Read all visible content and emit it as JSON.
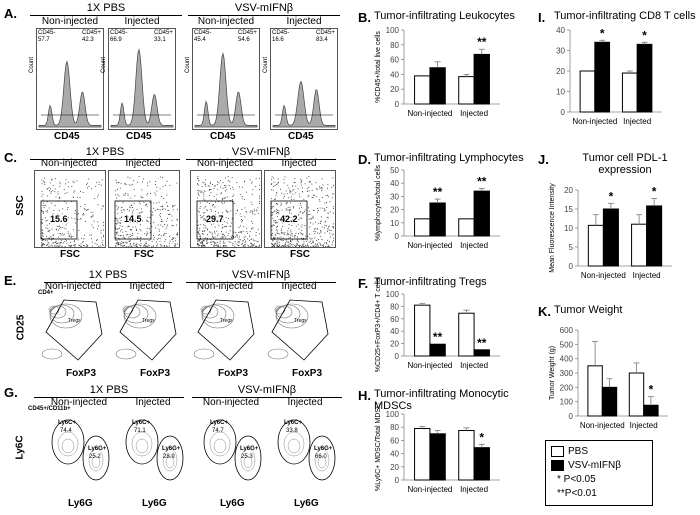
{
  "panels": {
    "A": {
      "letter": "A.",
      "groups": [
        "1X PBS",
        "VSV-mIFNβ"
      ],
      "subs": [
        "Non-injected",
        "Injected",
        "Non-injected",
        "Injected"
      ],
      "xaxis": "CD45",
      "yaxis": "Count",
      "gates": [
        [
          "CD45-",
          "57.7",
          "CD45+",
          "42.3"
        ],
        [
          "CD45-",
          "66.9",
          "CD45+",
          "33.1"
        ],
        [
          "CD45-",
          "45.4",
          "CD45+",
          "54.6"
        ],
        [
          "CD45-",
          "16.6",
          "CD45+",
          "83.4"
        ]
      ]
    },
    "C": {
      "letter": "C.",
      "groups": [
        "1X PBS",
        "VSV-mIFNβ"
      ],
      "subs": [
        "Non-injected",
        "Injected",
        "Non-injected",
        "Injected"
      ],
      "xaxis": "FSC",
      "yaxis": "SSC",
      "gates": [
        "15.6",
        "14.5",
        "29.7",
        "42.2"
      ]
    },
    "E": {
      "letter": "E.",
      "groups": [
        "1X PBS",
        "VSV-mIFNβ"
      ],
      "subs": [
        "Non-injected",
        "Injected",
        "Non-injected",
        "Injected"
      ],
      "xaxis": "FoxP3",
      "yaxis": "CD25",
      "gate_label": "CD4+",
      "tiny": "Tregs"
    },
    "G": {
      "letter": "G.",
      "groups": [
        "1X PBS",
        "VSV-mIFNβ"
      ],
      "subs": [
        "Non-injected",
        "Injected",
        "Non-injected",
        "Injected"
      ],
      "xaxis": "Ly6G",
      "yaxis": "Ly6C",
      "gate_label": "CD45+/CD11b+",
      "gates": [
        [
          "Ly6C+",
          "74.4",
          "Ly6G+",
          "25.2"
        ],
        [
          "Ly6C+",
          "71.1",
          "Ly6G+",
          "28.9"
        ],
        [
          "Ly6C+",
          "74.7",
          "Ly6G+",
          "25.3"
        ],
        [
          "Ly6C+",
          "33.8",
          "Ly6G+",
          "66.0"
        ]
      ]
    }
  },
  "chart_data": [
    {
      "id": "B",
      "letter": "B.",
      "type": "bar",
      "title": "Tumor-infiltrating Leukocytes",
      "ylabel": "%CD45+/total live cells",
      "ylim": [
        0,
        100
      ],
      "yticks": [
        0,
        20,
        40,
        60,
        80,
        100
      ],
      "categories": [
        "Non-injected",
        "Injected"
      ],
      "series": [
        {
          "name": "PBS",
          "values": [
            38,
            37
          ],
          "err": [
            0,
            3
          ]
        },
        {
          "name": "VSV-mIFNβ",
          "values": [
            49,
            67
          ],
          "err": [
            8,
            7
          ]
        }
      ],
      "sig": [
        "",
        "**"
      ]
    },
    {
      "id": "D",
      "letter": "D.",
      "type": "bar",
      "title": "Tumor-infiltrating Lymphocytes",
      "ylabel": "%lymphocytes/total cells",
      "ylim": [
        0,
        50
      ],
      "yticks": [
        0,
        10,
        20,
        30,
        40,
        50
      ],
      "categories": [
        "Non-injected",
        "Injected"
      ],
      "series": [
        {
          "name": "PBS",
          "values": [
            13,
            13
          ],
          "err": [
            0,
            0
          ]
        },
        {
          "name": "VSV-mIFNβ",
          "values": [
            25,
            34
          ],
          "err": [
            3,
            2
          ]
        }
      ],
      "sig": [
        "**",
        "**"
      ]
    },
    {
      "id": "F",
      "letter": "F.",
      "type": "bar",
      "title": "Tumor-infiltrating Tregs",
      "ylabel": "%CD25+FoxP3+/CD4+ T cells",
      "ylim": [
        0,
        100
      ],
      "yticks": [
        0,
        20,
        40,
        60,
        80,
        100
      ],
      "categories": [
        "Non-injected",
        "Injected"
      ],
      "series": [
        {
          "name": "PBS",
          "values": [
            82,
            69
          ],
          "err": [
            3,
            5
          ]
        },
        {
          "name": "VSV-mIFNβ",
          "values": [
            19,
            10
          ],
          "err": [
            0,
            0
          ]
        }
      ],
      "sig": [
        "**",
        "**"
      ]
    },
    {
      "id": "H",
      "letter": "H.",
      "type": "bar",
      "title": "Tumor-infiltrating Monocytic MDSCs",
      "ylabel": "%Ly6C+ MDSC/Total MDSC",
      "ylim": [
        0,
        100
      ],
      "yticks": [
        0,
        20,
        40,
        60,
        80,
        100
      ],
      "categories": [
        "Non-injected",
        "Injected"
      ],
      "series": [
        {
          "name": "PBS",
          "values": [
            78,
            75
          ],
          "err": [
            3,
            4
          ]
        },
        {
          "name": "VSV-mIFNβ",
          "values": [
            70,
            49
          ],
          "err": [
            5,
            5
          ]
        }
      ],
      "sig": [
        "",
        "*"
      ]
    },
    {
      "id": "I",
      "letter": "I.",
      "type": "bar",
      "title": "Tumor-infiltrating CD8 T cells",
      "ylabel": "",
      "ylim": [
        0,
        40
      ],
      "yticks": [
        0,
        10,
        20,
        30,
        40
      ],
      "categories": [
        "Non-injected",
        "Injected"
      ],
      "series": [
        {
          "name": "PBS",
          "values": [
            20,
            19
          ],
          "err": [
            0,
            1
          ]
        },
        {
          "name": "VSV-mIFNβ",
          "values": [
            34,
            33
          ],
          "err": [
            1,
            1
          ]
        }
      ],
      "sig": [
        "*",
        "*"
      ]
    },
    {
      "id": "J",
      "letter": "J.",
      "type": "bar",
      "title": "Tumor cell PDL-1 expression",
      "ylabel": "Mean Fluorescence Intensity",
      "ylim": [
        0,
        20
      ],
      "yticks": [
        0,
        5,
        10,
        15,
        20
      ],
      "categories": [
        "Non-injected",
        "Injected"
      ],
      "series": [
        {
          "name": "PBS",
          "values": [
            10.7,
            11
          ],
          "err": [
            2.8,
            2.5
          ]
        },
        {
          "name": "VSV-mIFNβ",
          "values": [
            15,
            15.8
          ],
          "err": [
            1.5,
            2
          ]
        }
      ],
      "sig": [
        "*",
        "*"
      ]
    },
    {
      "id": "K",
      "letter": "K.",
      "type": "bar",
      "title": "Tumor Weight",
      "ylabel": "Tumor Weight (g)",
      "ylim": [
        0,
        600
      ],
      "yticks": [
        0,
        100,
        200,
        300,
        400,
        500,
        600
      ],
      "categories": [
        "Non-injected",
        "Injected"
      ],
      "series": [
        {
          "name": "PBS",
          "values": [
            350,
            300
          ],
          "err": [
            170,
            70
          ]
        },
        {
          "name": "VSV-mIFNβ",
          "values": [
            200,
            75
          ],
          "err": [
            60,
            60
          ]
        }
      ],
      "sig": [
        "",
        "*"
      ]
    }
  ],
  "legend": {
    "items": [
      "PBS",
      "VSV-mIFNβ"
    ],
    "notes": [
      "* P<0.05",
      "**P<0.01"
    ]
  }
}
